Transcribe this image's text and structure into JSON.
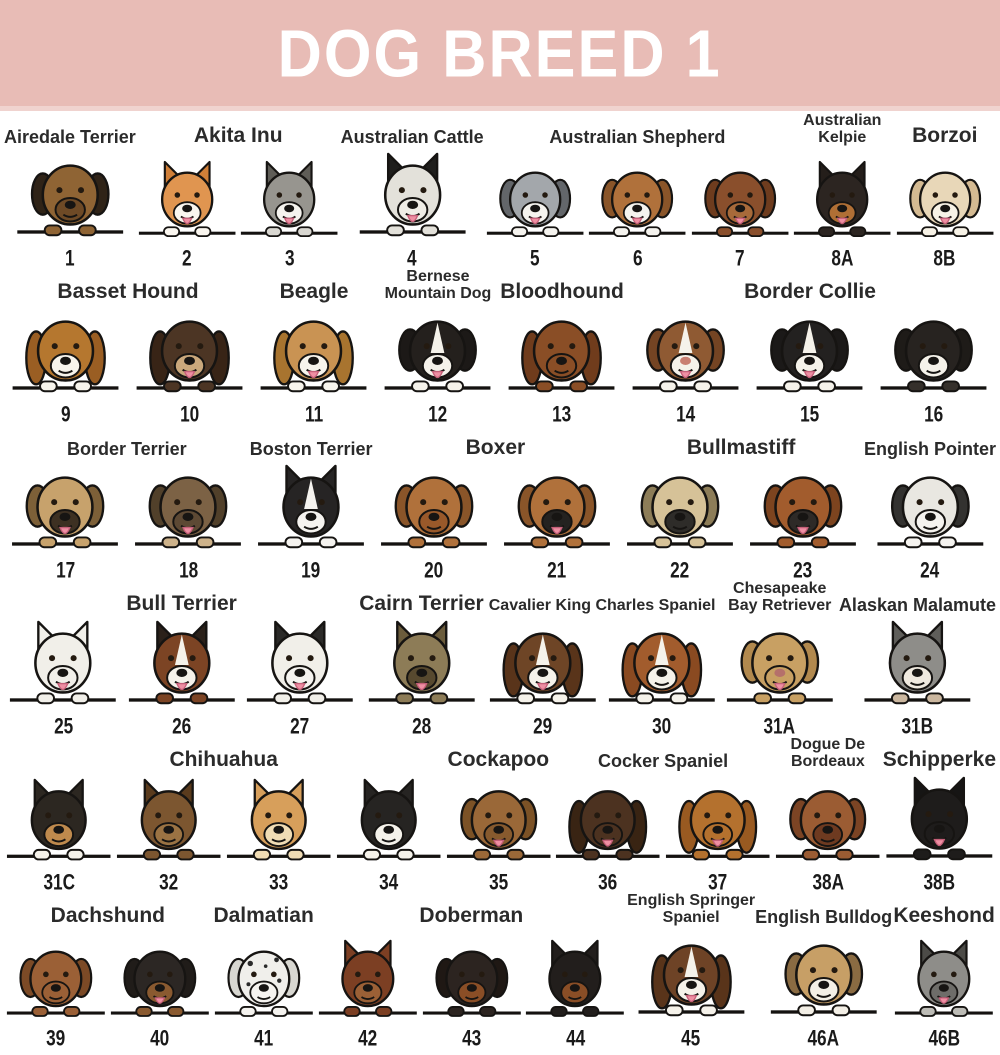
{
  "title": "DOG BREED 1",
  "colors": {
    "header_bg": "#e8bcb6",
    "header_strip": "#f0d3cf",
    "header_text": "#ffffff",
    "page_bg": "#ffffff",
    "shelf": "#141210",
    "outline": "#161412",
    "number_text": "#1a1a1a",
    "label_text": "#2b2b2b",
    "tongue": "#ef8fa3"
  },
  "rows": [
    {
      "groups": [
        {
          "label": "Airedale Terrier",
          "dogs": [
            {
              "num": "1",
              "body": "#8f6434",
              "ear": "#2f2317",
              "muzzle": "#6e4a26",
              "ears": "floppy",
              "tongue": false,
              "paw": "#8f6434"
            }
          ]
        },
        {
          "label": "Akita Inu",
          "dogs": [
            {
              "num": "2",
              "body": "#e09550",
              "ear": "#d07f38",
              "muzzle": "#faf6ef",
              "ears": "up",
              "tongue": true,
              "paw": "#faf6ef"
            },
            {
              "num": "3",
              "body": "#97958f",
              "ear": "#5f5d57",
              "muzzle": "#f5f3ee",
              "ears": "up",
              "tongue": true,
              "paw": "#d9d7d1"
            }
          ]
        },
        {
          "label": "Australian Cattle",
          "dogs": [
            {
              "num": "4",
              "body": "#e3e1da",
              "ear": "#1f1e1c",
              "muzzle": "#efede6",
              "ears": "up",
              "tongue": true,
              "paw": "#e3e1da"
            }
          ]
        },
        {
          "label": "Australian Shepherd",
          "dogs": [
            {
              "num": "5",
              "body": "#a3a7ab",
              "ear": "#63666a",
              "muzzle": "#f5f3ee",
              "ears": "floppy",
              "tongue": true,
              "paw": "#f5f3ee"
            },
            {
              "num": "6",
              "body": "#b0713b",
              "ear": "#8a5529",
              "muzzle": "#f5f3ee",
              "ears": "floppy",
              "tongue": true,
              "paw": "#f5f3ee"
            },
            {
              "num": "7",
              "body": "#8a4f2c",
              "ear": "#6e3c1e",
              "muzzle": "#a86a3a",
              "ears": "floppy",
              "tongue": true,
              "paw": "#8a4f2c"
            }
          ]
        },
        {
          "label": "Australian\nKelpie",
          "dogs": [
            {
              "num": "8A",
              "body": "#2c2521",
              "ear": "#241e1a",
              "muzzle": "#b06f35",
              "ears": "up",
              "tongue": true,
              "paw": "#2c2521"
            }
          ]
        },
        {
          "label": "Borzoi",
          "dogs": [
            {
              "num": "8B",
              "body": "#e8d7b8",
              "ear": "#d4ba92",
              "muzzle": "#f7f2e6",
              "ears": "floppy",
              "tongue": true,
              "paw": "#f7f2e6"
            }
          ]
        }
      ]
    },
    {
      "groups": [
        {
          "label": "Basset Hound",
          "dogs": [
            {
              "num": "9",
              "body": "#b5772f",
              "ear": "#9a5e23",
              "muzzle": "#f7f4ec",
              "ears": "long",
              "tongue": false,
              "paw": "#f7f4ec"
            },
            {
              "num": "10",
              "body": "#4c3524",
              "ear": "#382416",
              "muzzle": "#caa87c",
              "ears": "long",
              "tongue": true,
              "paw": "#4c3524"
            }
          ]
        },
        {
          "label": "Beagle",
          "dogs": [
            {
              "num": "11",
              "body": "#c99353",
              "ear": "#a8742f",
              "muzzle": "#f7f4ec",
              "ears": "long",
              "tongue": true,
              "paw": "#f7f4ec"
            }
          ]
        },
        {
          "label": "Bernese\nMountain Dog",
          "dogs": [
            {
              "num": "12",
              "body": "#24201d",
              "ear": "#1c1917",
              "muzzle": "#f5f2ea",
              "ears": "floppy",
              "tongue": true,
              "blaze": "#f5f2ea",
              "paw": "#f5f2ea"
            }
          ]
        },
        {
          "label": "Bloodhound",
          "dogs": [
            {
              "num": "13",
              "body": "#8a4e26",
              "ear": "#703c1c",
              "muzzle": "#8a4e26",
              "ears": "long",
              "tongue": false,
              "paw": "#8a4e26"
            }
          ]
        },
        {
          "label": "Border Collie",
          "dogs": [
            {
              "num": "14",
              "body": "#8f5a33",
              "ear": "#744423",
              "muzzle": "#f5f2ea",
              "ears": "floppy",
              "tongue": true,
              "blaze": "#f5f2ea",
              "paw": "#f5f2ea",
              "nose": "#c97f72"
            },
            {
              "num": "15",
              "body": "#232120",
              "ear": "#1b1918",
              "muzzle": "#f5f2ea",
              "ears": "floppy",
              "tongue": true,
              "blaze": "#f5f2ea",
              "paw": "#f5f2ea"
            },
            {
              "num": "16",
              "body": "#272320",
              "ear": "#1e1b18",
              "muzzle": "#f5f2ea",
              "ears": "floppy",
              "tongue": false,
              "paw": "#35302b"
            }
          ]
        }
      ]
    },
    {
      "groups": [
        {
          "label": "Border Terrier",
          "dogs": [
            {
              "num": "17",
              "body": "#c7a26c",
              "ear": "#7d6038",
              "muzzle": "#3d3022",
              "ears": "floppy",
              "tongue": true,
              "paw": "#c7a26c"
            },
            {
              "num": "18",
              "body": "#7c6245",
              "ear": "#51402a",
              "muzzle": "#5d4934",
              "ears": "floppy",
              "tongue": true,
              "paw": "#cdb28a"
            }
          ]
        },
        {
          "label": "Boston Terrier",
          "dogs": [
            {
              "num": "19",
              "body": "#262424",
              "ear": "#262424",
              "muzzle": "#f5f3ef",
              "ears": "up",
              "tongue": false,
              "blaze": "#f5f3ef",
              "paw": "#f5f3ef"
            }
          ]
        },
        {
          "label": "Boxer",
          "dogs": [
            {
              "num": "20",
              "body": "#b0713b",
              "ear": "#8a5529",
              "muzzle": "#99592a",
              "ears": "floppy",
              "tongue": false,
              "paw": "#b0713b"
            },
            {
              "num": "21",
              "body": "#b0713b",
              "ear": "#8a5529",
              "muzzle": "#242220",
              "ears": "floppy",
              "tongue": true,
              "paw": "#b0713b"
            }
          ]
        },
        {
          "label": "Bullmastiff",
          "dogs": [
            {
              "num": "22",
              "body": "#d6c298",
              "ear": "#8d7d58",
              "muzzle": "#2e2c29",
              "ears": "floppy",
              "tongue": false,
              "paw": "#d6c298"
            },
            {
              "num": "23",
              "body": "#a25c2d",
              "ear": "#7d441f",
              "muzzle": "#2e2a27",
              "ears": "floppy",
              "tongue": true,
              "paw": "#a25c2d"
            }
          ]
        },
        {
          "label": "English Pointer",
          "dogs": [
            {
              "num": "24",
              "body": "#e9e7e1",
              "ear": "#333230",
              "muzzle": "#f5f3ef",
              "ears": "floppy",
              "tongue": false,
              "paw": "#f5f3ef"
            }
          ]
        }
      ]
    },
    {
      "groups": [
        {
          "label": "Bull Terrier",
          "dogs": [
            {
              "num": "25",
              "body": "#f1efe9",
              "ear": "#f1efe9",
              "muzzle": "#f1efe9",
              "ears": "up",
              "tongue": true,
              "paw": "#f1efe9"
            },
            {
              "num": "26",
              "body": "#7c4424",
              "ear": "#2b211a",
              "muzzle": "#f5f2ea",
              "ears": "up",
              "tongue": true,
              "blaze": "#f5f2ea",
              "paw": "#7c4424"
            },
            {
              "num": "27",
              "body": "#f1efe9",
              "ear": "#2b2a28",
              "muzzle": "#f5f3ef",
              "ears": "up",
              "tongue": true,
              "paw": "#f1efe9"
            }
          ]
        },
        {
          "label": "Cairn Terrier",
          "dogs": [
            {
              "num": "28",
              "body": "#8d7c57",
              "ear": "#6b5c3c",
              "muzzle": "#57492f",
              "ears": "up",
              "tongue": true,
              "paw": "#8d7c57"
            }
          ]
        },
        {
          "label": "Cavalier King Charles Spaniel",
          "dogs": [
            {
              "num": "29",
              "body": "#6e4526",
              "ear": "#59341a",
              "muzzle": "#f5f2ea",
              "ears": "long",
              "tongue": true,
              "blaze": "#f5f2ea",
              "paw": "#f5f2ea"
            },
            {
              "num": "30",
              "body": "#a25c2d",
              "ear": "#8a4a21",
              "muzzle": "#f5f2ea",
              "ears": "long",
              "tongue": false,
              "blaze": "#f5f2ea",
              "paw": "#f5f2ea"
            }
          ]
        },
        {
          "label": "Chesapeake\nBay Retriever",
          "dogs": [
            {
              "num": "31A",
              "body": "#c8a063",
              "ear": "#b2894e",
              "muzzle": "#c8a063",
              "ears": "floppy",
              "tongue": true,
              "paw": "#c8a063",
              "nose": "#b5706b"
            }
          ]
        },
        {
          "label": "Alaskan Malamute",
          "dogs": [
            {
              "num": "31B",
              "body": "#8e8d89",
              "ear": "#5f5e5a",
              "muzzle": "#efe9df",
              "ears": "up",
              "tongue": false,
              "paw": "#cbb79f"
            }
          ]
        }
      ]
    },
    {
      "groups": [
        {
          "label": "Chihuahua",
          "dogs": [
            {
              "num": "31C",
              "body": "#2c2721",
              "ear": "#2c2721",
              "muzzle": "#bf8a4d",
              "ears": "up",
              "tongue": false,
              "paw": "#f5f2ea"
            },
            {
              "num": "32",
              "body": "#7c5630",
              "ear": "#5a3b1d",
              "muzzle": "#9b7343",
              "ears": "up",
              "tongue": false,
              "paw": "#7c5630"
            },
            {
              "num": "33",
              "body": "#d79f5b",
              "ear": "#d79f5b",
              "muzzle": "#f0dcb4",
              "ears": "up",
              "tongue": false,
              "paw": "#f0dcb4"
            },
            {
              "num": "34",
              "body": "#262422",
              "ear": "#262422",
              "muzzle": "#f5f2ea",
              "ears": "up",
              "tongue": false,
              "paw": "#f5f2ea"
            }
          ]
        },
        {
          "label": "Cockapoo",
          "dogs": [
            {
              "num": "35",
              "body": "#9a6838",
              "ear": "#7c5226",
              "muzzle": "#875a2e",
              "ears": "floppy",
              "tongue": true,
              "paw": "#9a6838"
            }
          ]
        },
        {
          "label": "Cocker Spaniel",
          "dogs": [
            {
              "num": "36",
              "body": "#4c3220",
              "ear": "#392413",
              "muzzle": "#4c3220",
              "ears": "long",
              "tongue": true,
              "paw": "#4c3220"
            },
            {
              "num": "37",
              "body": "#b4712e",
              "ear": "#995a21",
              "muzzle": "#b4712e",
              "ears": "long",
              "tongue": true,
              "paw": "#b4712e"
            }
          ]
        },
        {
          "label": "Dogue De\nBordeaux",
          "dogs": [
            {
              "num": "38A",
              "body": "#9b5c33",
              "ear": "#7c4424",
              "muzzle": "#6e3a20",
              "ears": "floppy",
              "tongue": false,
              "paw": "#9b5c33"
            }
          ]
        },
        {
          "label": "Schipperke",
          "dogs": [
            {
              "num": "38B",
              "body": "#1e1c1b",
              "ear": "#161514",
              "muzzle": "#1e1c1b",
              "ears": "up",
              "tongue": true,
              "paw": "#1e1c1b"
            }
          ]
        }
      ]
    },
    {
      "groups": [
        {
          "label": "Dachshund",
          "dogs": [
            {
              "num": "39",
              "body": "#9b6036",
              "ear": "#7c4a26",
              "muzzle": "#9b6036",
              "ears": "floppy",
              "tongue": false,
              "paw": "#9b6036"
            },
            {
              "num": "40",
              "body": "#2c2724",
              "ear": "#201c19",
              "muzzle": "#8a5a30",
              "ears": "floppy",
              "tongue": true,
              "paw": "#8a5a30"
            }
          ]
        },
        {
          "label": "Dalmatian",
          "dogs": [
            {
              "num": "41",
              "body": "#f0efeb",
              "ear": "#d8d7d1",
              "muzzle": "#f5f3ef",
              "ears": "floppy",
              "tongue": false,
              "spots": true,
              "paw": "#f5f3ef"
            }
          ]
        },
        {
          "label": "Doberman",
          "dogs": [
            {
              "num": "42",
              "body": "#7c3f23",
              "ear": "#7c3f23",
              "muzzle": "#9b6036",
              "ears": "up",
              "tongue": false,
              "paw": "#7c3f23"
            },
            {
              "num": "43",
              "body": "#2c2420",
              "ear": "#1f1814",
              "muzzle": "#8a4e26",
              "ears": "floppy",
              "tongue": false,
              "paw": "#2c2420"
            },
            {
              "num": "44",
              "body": "#221e1c",
              "ear": "#221e1c",
              "muzzle": "#8a4e26",
              "ears": "up",
              "tongue": false,
              "paw": "#221e1c"
            }
          ]
        },
        {
          "label": "English Springer\nSpaniel",
          "dogs": [
            {
              "num": "45",
              "body": "#6e4326",
              "ear": "#59341a",
              "muzzle": "#f5f2ea",
              "ears": "long",
              "tongue": true,
              "blaze": "#f5f2ea",
              "paw": "#f5f2ea"
            }
          ]
        },
        {
          "label": "English Bulldog",
          "dogs": [
            {
              "num": "46A",
              "body": "#c79f66",
              "ear": "#8a6b42",
              "muzzle": "#f3efe6",
              "ears": "floppy",
              "tongue": false,
              "paw": "#f3efe6"
            }
          ]
        },
        {
          "label": "Keeshond",
          "dogs": [
            {
              "num": "46B",
              "body": "#8e8d89",
              "ear": "#4c4b47",
              "muzzle": "#6e6d69",
              "ears": "up",
              "tongue": true,
              "paw": "#bdbcb6"
            }
          ]
        }
      ]
    }
  ]
}
